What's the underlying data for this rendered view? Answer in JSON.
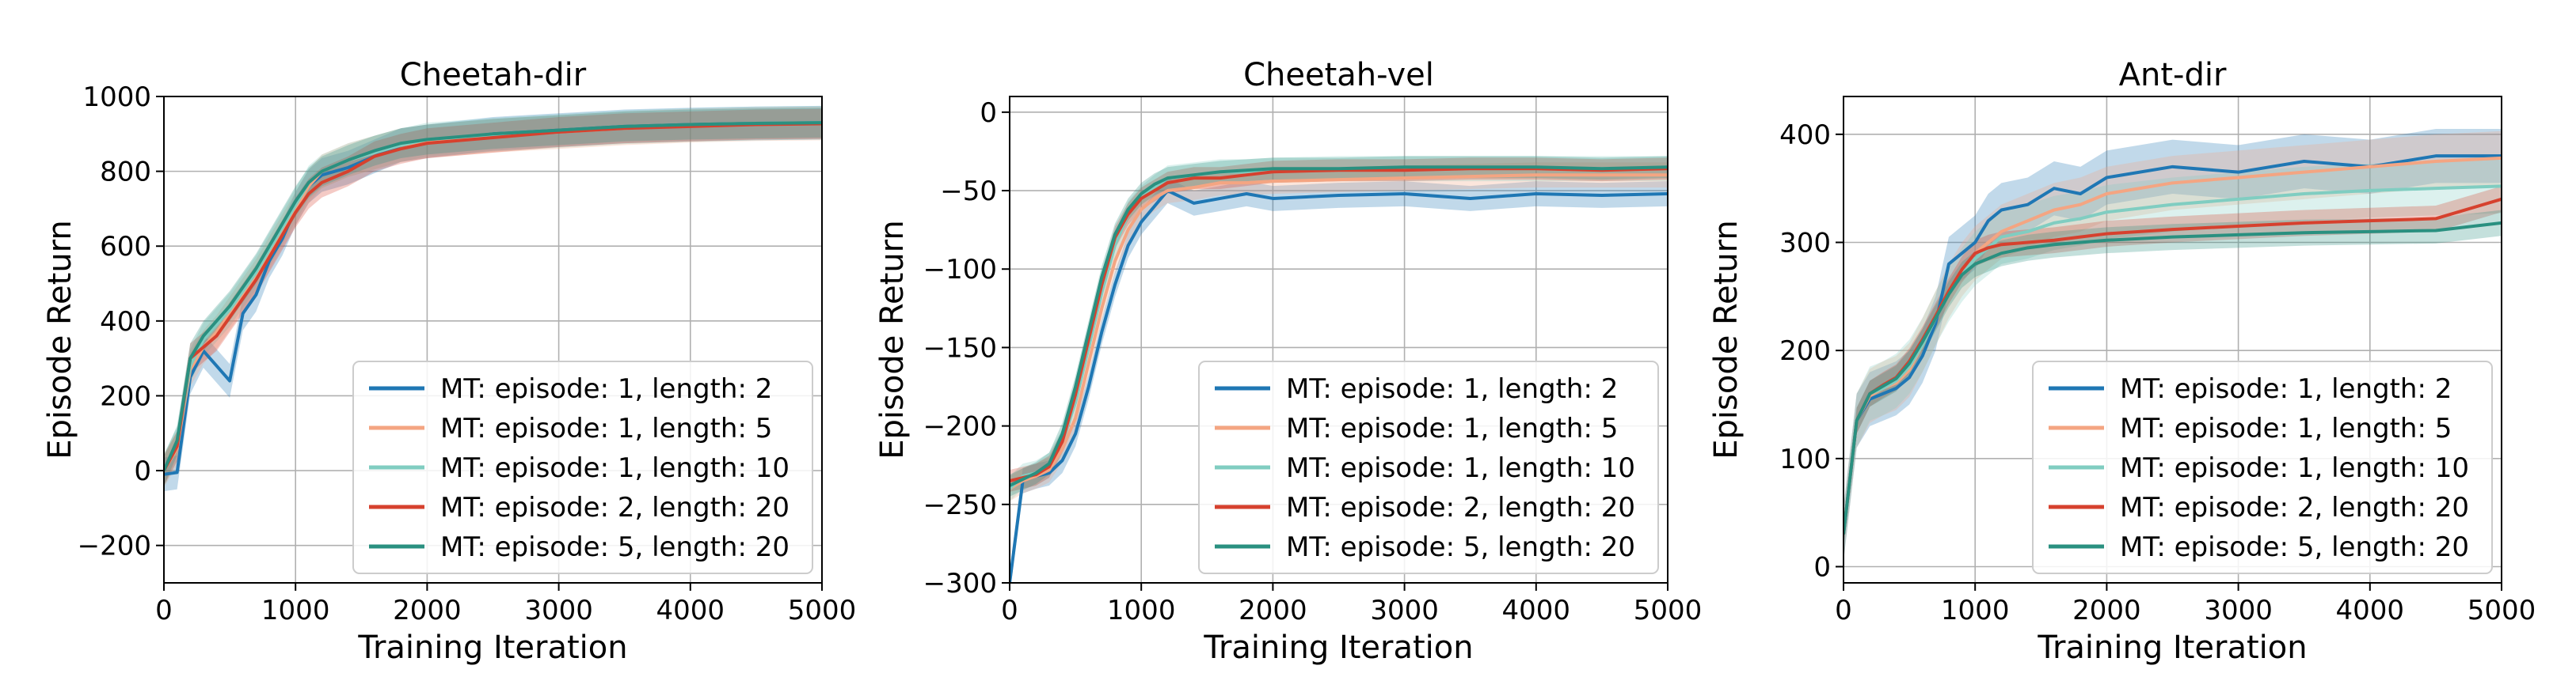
{
  "chart_data": [
    {
      "type": "line",
      "title": "Cheetah-dir",
      "xlabel": "Training Iteration",
      "ylabel": "Episode Return",
      "xlim": [
        0,
        5000
      ],
      "ylim": [
        -300,
        1000
      ],
      "xticks": [
        0,
        1000,
        2000,
        3000,
        4000,
        5000
      ],
      "yticks": [
        -200,
        0,
        200,
        400,
        600,
        800,
        1000
      ],
      "ytick_labels": [
        "−200",
        "0",
        "200",
        "400",
        "600",
        "800",
        "1000"
      ],
      "grid": true,
      "legend_position": "lower-right",
      "x": [
        0,
        100,
        200,
        300,
        400,
        500,
        600,
        700,
        800,
        900,
        1000,
        1100,
        1200,
        1400,
        1600,
        1800,
        2000,
        2500,
        3000,
        3500,
        4000,
        4500,
        5000
      ],
      "series": [
        {
          "name": "MT: episode: 1, length: 2",
          "color": "#1f77b4",
          "band": 45,
          "values": [
            -10,
            -5,
            250,
            320,
            280,
            240,
            420,
            470,
            560,
            620,
            700,
            760,
            790,
            810,
            840,
            870,
            880,
            900,
            910,
            920,
            925,
            928,
            930
          ]
        },
        {
          "name": "MT: episode: 1, length: 5",
          "color": "#f4a582",
          "band": 45,
          "values": [
            0,
            60,
            270,
            330,
            370,
            420,
            470,
            520,
            580,
            640,
            700,
            760,
            800,
            830,
            850,
            870,
            880,
            895,
            905,
            915,
            922,
            926,
            928
          ]
        },
        {
          "name": "MT: episode: 1, length: 10",
          "color": "#80cdc1",
          "band": 45,
          "values": [
            0,
            70,
            280,
            350,
            390,
            430,
            480,
            530,
            590,
            650,
            710,
            770,
            800,
            830,
            850,
            870,
            885,
            898,
            908,
            918,
            924,
            928,
            930
          ]
        },
        {
          "name": "MT: episode: 2, length: 20",
          "color": "#d6412e",
          "band": 40,
          "values": [
            0,
            65,
            300,
            330,
            360,
            410,
            460,
            510,
            570,
            630,
            690,
            740,
            770,
            800,
            840,
            860,
            875,
            890,
            905,
            915,
            920,
            925,
            927
          ]
        },
        {
          "name": "MT: episode: 5, length: 20",
          "color": "#2a9080",
          "band": 40,
          "values": [
            0,
            80,
            300,
            360,
            400,
            440,
            490,
            540,
            600,
            660,
            720,
            770,
            800,
            830,
            855,
            875,
            885,
            900,
            910,
            920,
            925,
            928,
            930
          ]
        }
      ]
    },
    {
      "type": "line",
      "title": "Cheetah-vel",
      "xlabel": "Training Iteration",
      "ylabel": "Episode Return",
      "xlim": [
        0,
        5000
      ],
      "ylim": [
        -300,
        10
      ],
      "xticks": [
        0,
        1000,
        2000,
        3000,
        4000,
        5000
      ],
      "yticks": [
        -300,
        -250,
        -200,
        -150,
        -100,
        -50,
        0
      ],
      "ytick_labels": [
        "−300",
        "−250",
        "−200",
        "−150",
        "−100",
        "−50",
        "0"
      ],
      "grid": true,
      "legend_position": "lower-right",
      "x": [
        0,
        100,
        200,
        300,
        400,
        500,
        600,
        700,
        800,
        900,
        1000,
        1100,
        1200,
        1400,
        1600,
        1800,
        2000,
        2500,
        3000,
        3500,
        4000,
        4500,
        5000
      ],
      "series": [
        {
          "name": "MT: episode: 1, length: 2",
          "color": "#1f77b4",
          "band": 8,
          "values": [
            -300,
            -235,
            -232,
            -230,
            -222,
            -205,
            -175,
            -140,
            -110,
            -85,
            -70,
            -60,
            -50,
            -58,
            -55,
            -52,
            -55,
            -53,
            -52,
            -55,
            -52,
            -53,
            -52
          ]
        },
        {
          "name": "MT: episode: 1, length: 5",
          "color": "#f4a582",
          "band": 8,
          "values": [
            -240,
            -235,
            -232,
            -228,
            -215,
            -195,
            -160,
            -125,
            -95,
            -75,
            -62,
            -55,
            -50,
            -48,
            -45,
            -45,
            -44,
            -43,
            -42,
            -41,
            -40,
            -40,
            -40
          ]
        },
        {
          "name": "MT: episode: 1, length: 10",
          "color": "#80cdc1",
          "band": 8,
          "values": [
            -240,
            -232,
            -230,
            -225,
            -210,
            -185,
            -150,
            -115,
            -85,
            -65,
            -55,
            -48,
            -42,
            -40,
            -38,
            -38,
            -37,
            -36,
            -36,
            -36,
            -36,
            -36,
            -36
          ]
        },
        {
          "name": "MT: episode: 2, length: 20",
          "color": "#d6412e",
          "band": 7,
          "values": [
            -235,
            -233,
            -231,
            -226,
            -210,
            -180,
            -145,
            -110,
            -80,
            -65,
            -55,
            -50,
            -45,
            -42,
            -42,
            -40,
            -38,
            -37,
            -37,
            -36,
            -36,
            -37,
            -36
          ]
        },
        {
          "name": "MT: episode: 5, length: 20",
          "color": "#2a9080",
          "band": 7,
          "values": [
            -238,
            -234,
            -230,
            -224,
            -205,
            -175,
            -140,
            -105,
            -78,
            -62,
            -52,
            -46,
            -42,
            -40,
            -38,
            -37,
            -36,
            -36,
            -35,
            -35,
            -35,
            -36,
            -35
          ]
        }
      ]
    },
    {
      "type": "line",
      "title": "Ant-dir",
      "xlabel": "Training Iteration",
      "ylabel": "Episode Return",
      "xlim": [
        0,
        5000
      ],
      "ylim": [
        -15,
        435
      ],
      "xticks": [
        0,
        1000,
        2000,
        3000,
        4000,
        5000
      ],
      "yticks": [
        0,
        100,
        200,
        300,
        400
      ],
      "ytick_labels": [
        "0",
        "100",
        "200",
        "300",
        "400"
      ],
      "grid": true,
      "legend_position": "lower-right",
      "x": [
        0,
        100,
        200,
        300,
        400,
        500,
        600,
        700,
        800,
        900,
        1000,
        1100,
        1200,
        1400,
        1600,
        1800,
        2000,
        2500,
        3000,
        3500,
        4000,
        4500,
        5000
      ],
      "series": [
        {
          "name": "MT: episode: 1, length: 2",
          "color": "#1f77b4",
          "band": 25,
          "values": [
            30,
            135,
            155,
            160,
            165,
            175,
            195,
            225,
            280,
            290,
            300,
            320,
            330,
            335,
            350,
            345,
            360,
            370,
            365,
            375,
            370,
            380,
            380
          ]
        },
        {
          "name": "MT: episode: 1, length: 5",
          "color": "#f4a582",
          "band": 25,
          "values": [
            30,
            135,
            158,
            165,
            170,
            182,
            205,
            230,
            255,
            275,
            290,
            300,
            310,
            320,
            330,
            335,
            345,
            355,
            360,
            365,
            370,
            375,
            378
          ]
        },
        {
          "name": "MT: episode: 1, length: 10",
          "color": "#80cdc1",
          "band": 25,
          "values": [
            30,
            135,
            160,
            165,
            172,
            185,
            205,
            230,
            252,
            270,
            285,
            295,
            305,
            310,
            318,
            322,
            328,
            335,
            340,
            345,
            348,
            350,
            352
          ]
        },
        {
          "name": "MT: episode: 2, length: 20",
          "color": "#d6412e",
          "band": 12,
          "values": [
            30,
            135,
            160,
            168,
            175,
            190,
            210,
            232,
            255,
            275,
            290,
            295,
            298,
            300,
            302,
            305,
            308,
            312,
            315,
            318,
            320,
            322,
            340
          ]
        },
        {
          "name": "MT: episode: 5, length: 20",
          "color": "#2a9080",
          "band": 12,
          "values": [
            30,
            135,
            160,
            167,
            174,
            188,
            208,
            230,
            252,
            270,
            280,
            285,
            290,
            295,
            298,
            300,
            302,
            305,
            307,
            309,
            310,
            311,
            318
          ]
        }
      ]
    }
  ]
}
